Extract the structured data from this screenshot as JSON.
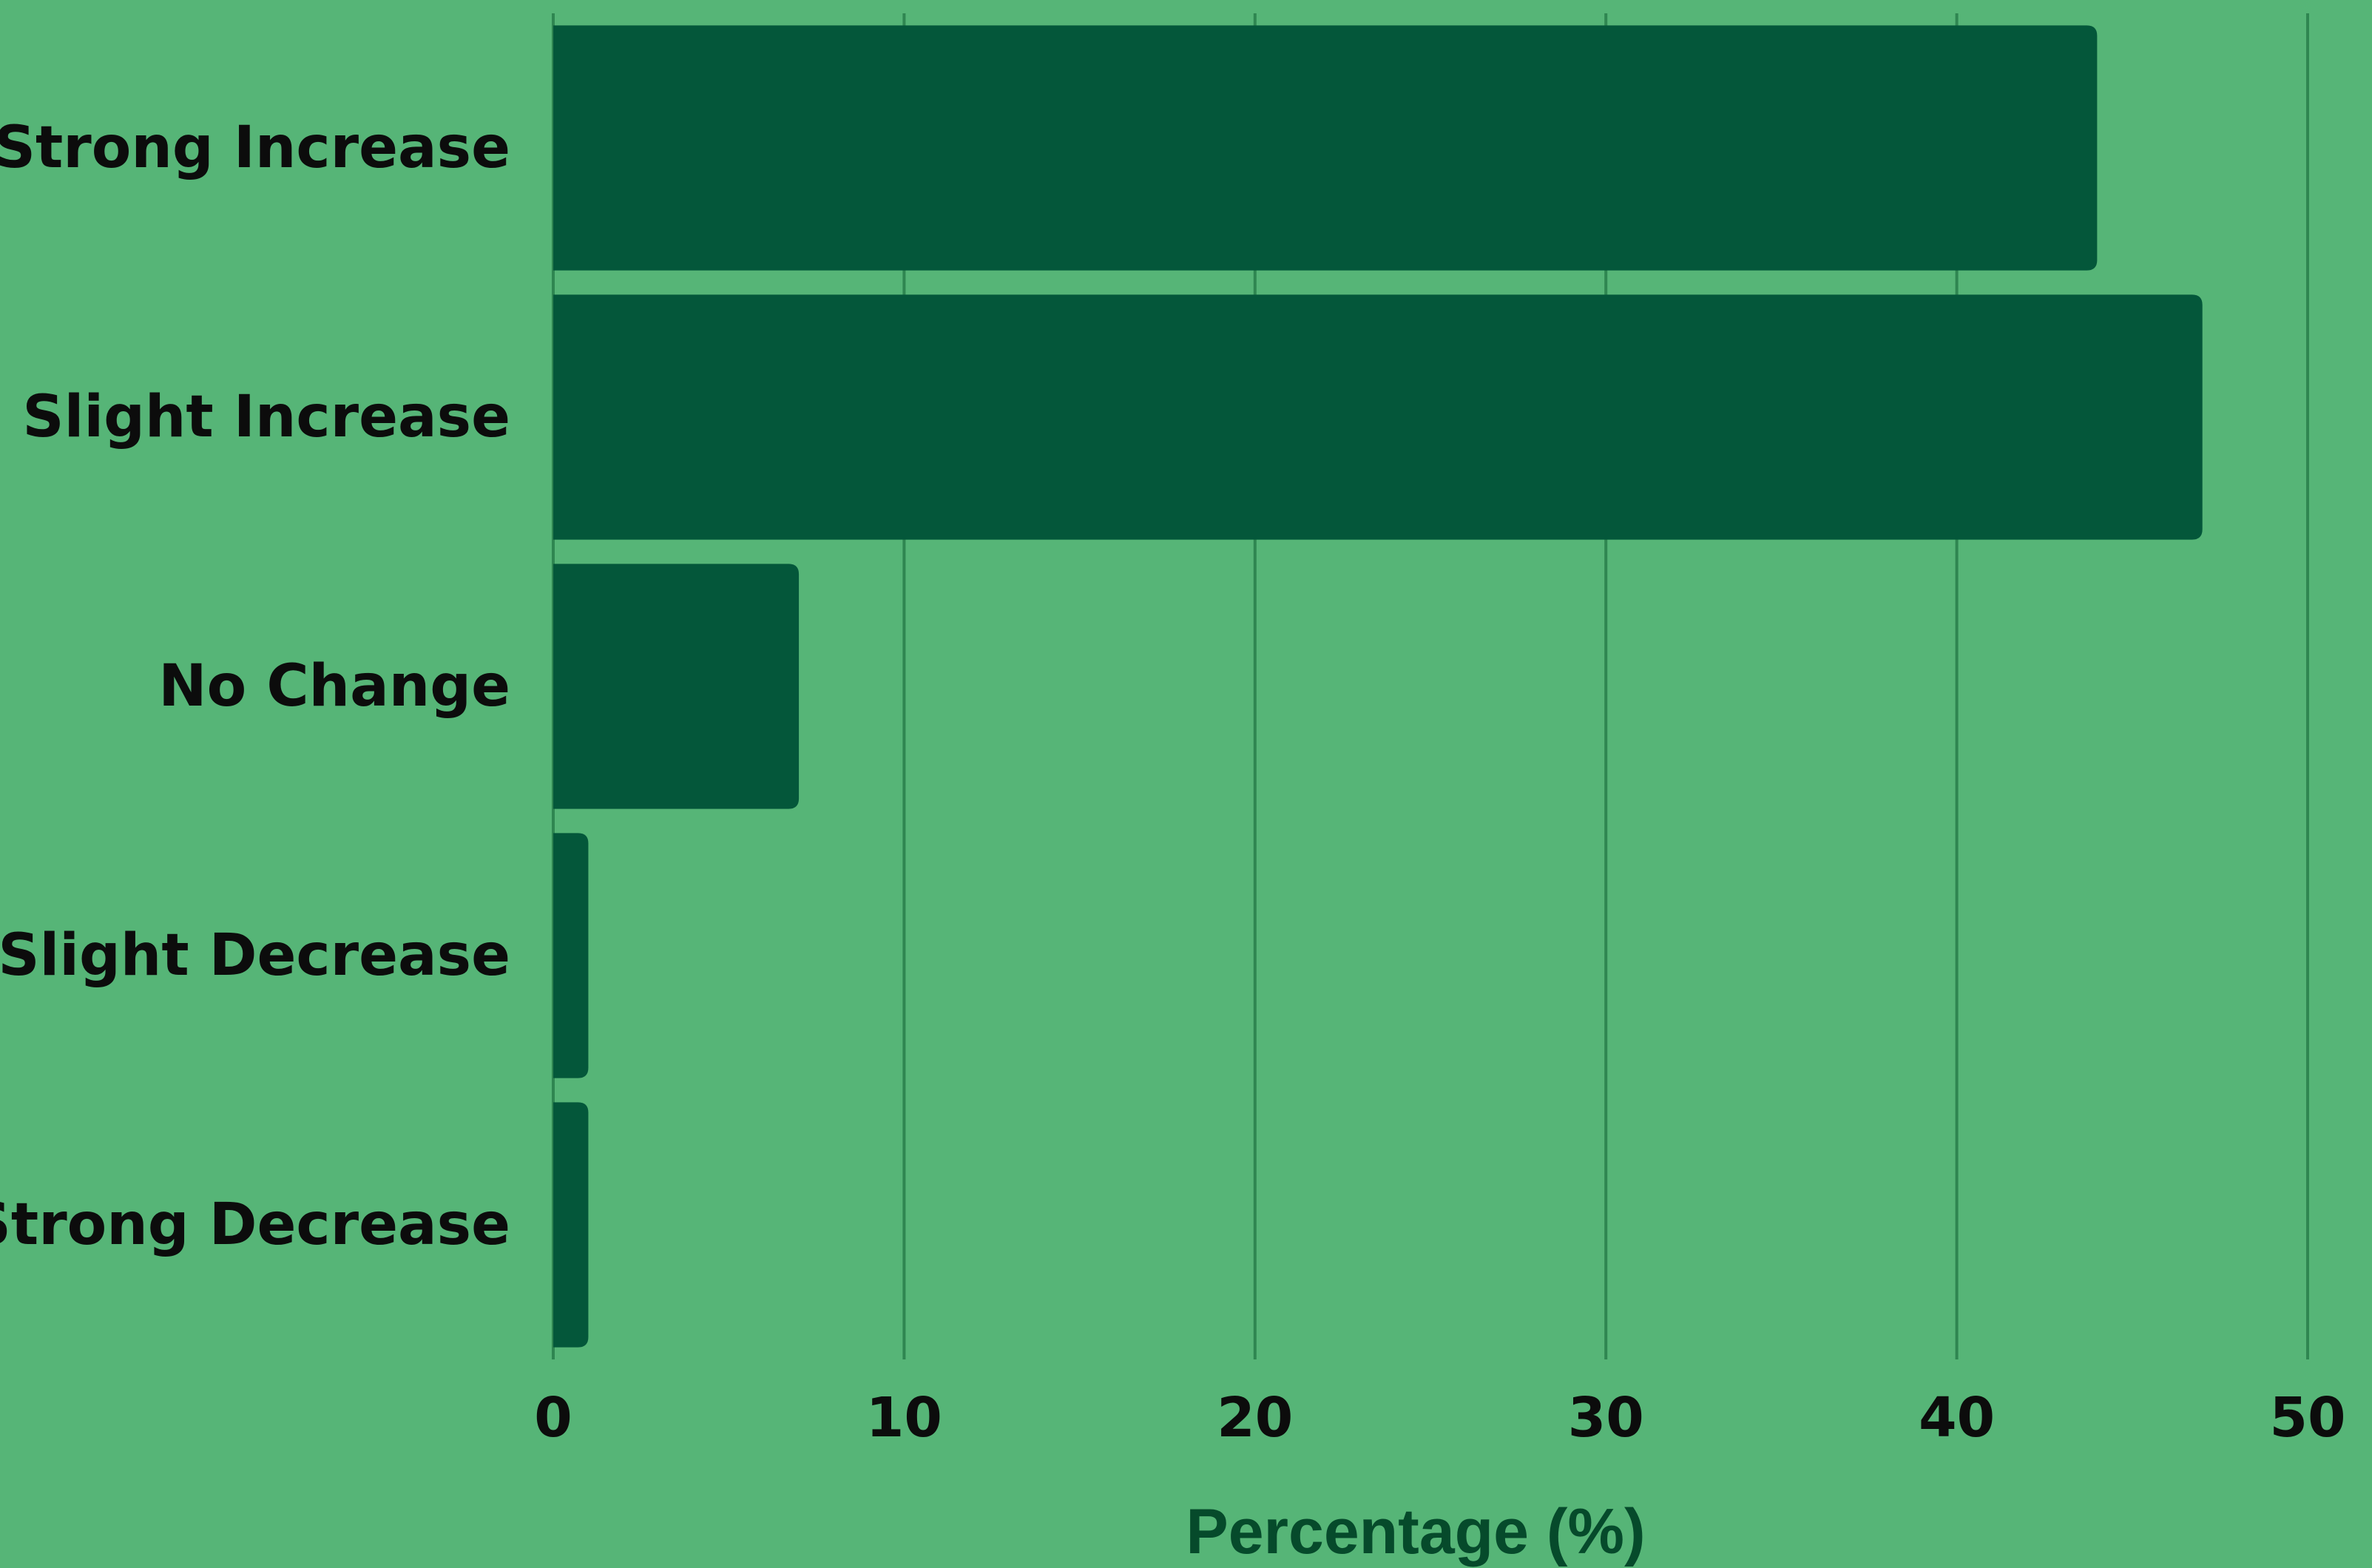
{
  "chart_data": {
    "type": "bar",
    "orientation": "horizontal",
    "categories": [
      "Strong Increase",
      "Slight Increase",
      "No Change",
      "Slight Decrease",
      "Strong Decrease"
    ],
    "values": [
      44,
      47,
      7,
      1,
      1
    ],
    "title": "",
    "xlabel": "Percentage (%)",
    "ylabel": "",
    "xlim": [
      0,
      50
    ],
    "xticks": [
      "0",
      "10",
      "20",
      "30",
      "40",
      "50"
    ],
    "grid": true,
    "legend": "none"
  },
  "colors": {
    "background": "#56b577",
    "bar": "#04573a",
    "gridline": "#2f8651",
    "label_text": "#0c0c0c",
    "axis_title": "#064a2b"
  }
}
